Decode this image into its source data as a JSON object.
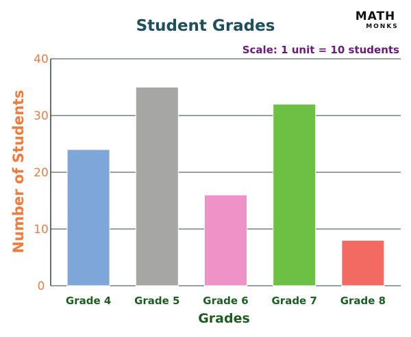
{
  "logo": {
    "main": "MATH",
    "sub": "MONKS"
  },
  "chart_data": {
    "type": "bar",
    "title": "Student Grades",
    "annotation": "Scale: 1 unit = 10 students",
    "xlabel": "Grades",
    "ylabel": "Number of Students",
    "categories": [
      "Grade 4",
      "Grade 5",
      "Grade 6",
      "Grade 7",
      "Grade 8"
    ],
    "values": [
      24,
      35,
      16,
      32,
      8
    ],
    "colors": [
      "#7ea6d8",
      "#a6a6a4",
      "#ee92c8",
      "#6cc043",
      "#f26a61"
    ],
    "ylim": [
      0,
      40
    ],
    "yticks": [
      0,
      10,
      20,
      30,
      40
    ],
    "grid": true,
    "legend": "none",
    "palette": {
      "title": "#1f4e5f",
      "yaxis_text": "#f07b3f",
      "xaxis_text": "#1b5e20",
      "annotation": "#6a1b7a",
      "grid": "#2e3f4a"
    }
  }
}
